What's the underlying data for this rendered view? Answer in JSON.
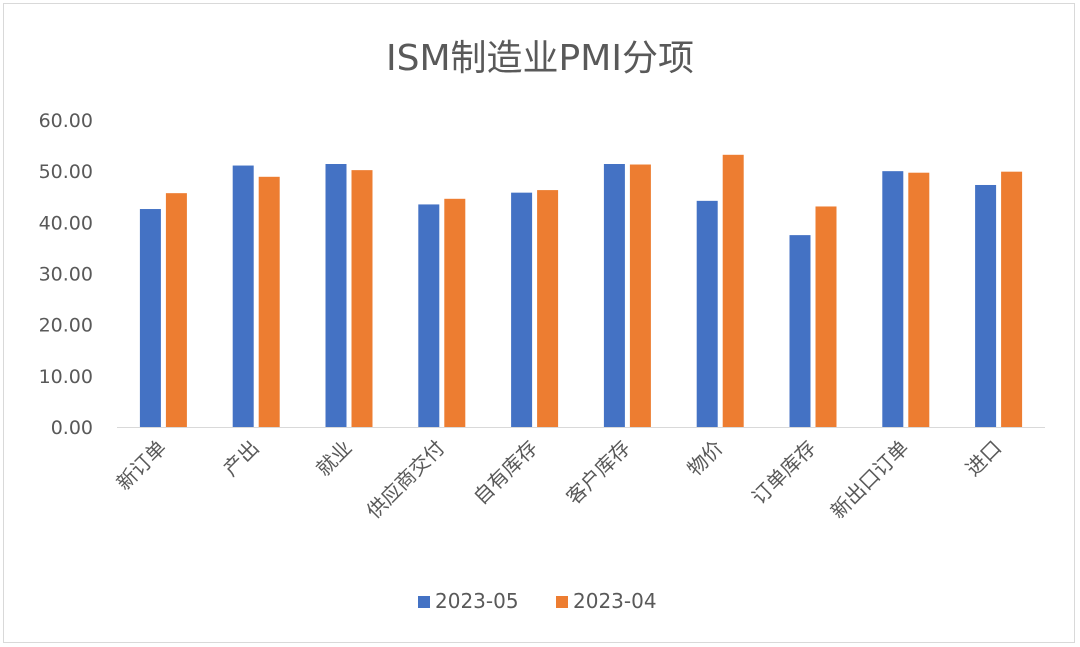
{
  "chart_data": {
    "type": "bar",
    "title": "ISM制造业PMI分项",
    "categories": [
      "新订单",
      "产出",
      "就业",
      "供应商交付",
      "自有库存",
      "客户库存",
      "物价",
      "订单库存",
      "新出口订单",
      "进口"
    ],
    "series": [
      {
        "name": "2023-05",
        "color": "#4472C4",
        "values": [
          42.6,
          51.1,
          51.4,
          43.5,
          45.8,
          51.4,
          44.2,
          37.5,
          50.0,
          47.3
        ]
      },
      {
        "name": "2023-04",
        "color": "#ED7D31",
        "values": [
          45.7,
          48.9,
          50.2,
          44.6,
          46.3,
          51.3,
          53.2,
          43.1,
          49.7,
          49.9
        ]
      }
    ],
    "ylim": [
      0,
      60
    ],
    "yticks": [
      "0.00",
      "10.00",
      "20.00",
      "30.00",
      "40.00",
      "50.00",
      "60.00"
    ],
    "xlabel": "",
    "ylabel": "",
    "legend_position": "bottom",
    "grid": false
  }
}
